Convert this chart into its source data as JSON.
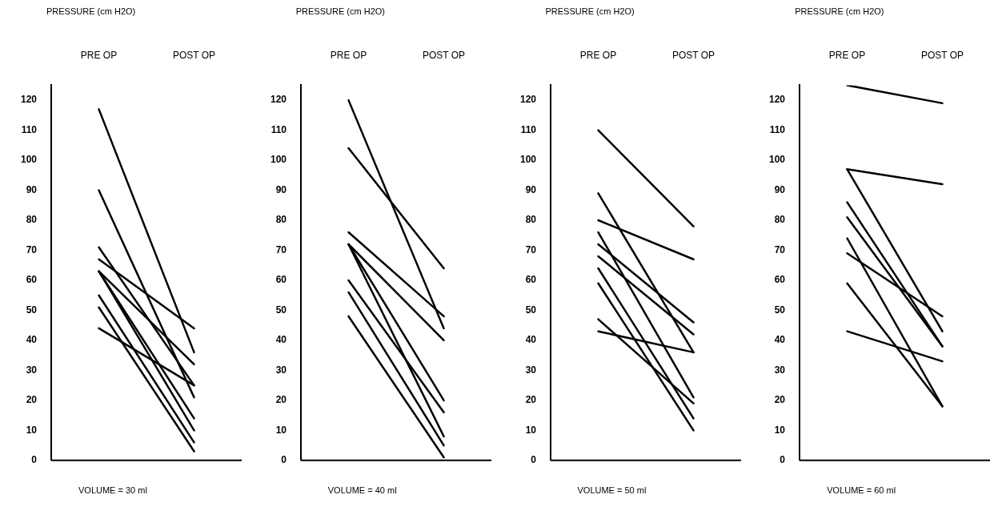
{
  "chart_data": [
    {
      "type": "line",
      "ylabel": "PRESSURE (cm H2O)",
      "xlabel": "VOLUME = 30 ml",
      "categories": [
        "PRE OP",
        "POST OP"
      ],
      "ylim": [
        0,
        125
      ],
      "yticks": [
        0,
        10,
        20,
        30,
        40,
        50,
        60,
        70,
        80,
        90,
        100,
        110,
        120
      ],
      "grid": false,
      "legend": false,
      "marker": "none",
      "line_style": "solid",
      "series": [
        {
          "color": "#000000",
          "values": [
            117,
            36
          ]
        },
        {
          "color": "#000000",
          "values": [
            90,
            21
          ]
        },
        {
          "color": "#000000",
          "values": [
            71,
            25
          ]
        },
        {
          "color": "#000000",
          "values": [
            67,
            44
          ]
        },
        {
          "color": "#000000",
          "values": [
            63,
            32
          ]
        },
        {
          "color": "#000000",
          "values": [
            63,
            14
          ]
        },
        {
          "color": "#000000",
          "values": [
            63,
            10
          ]
        },
        {
          "color": "#000000",
          "values": [
            55,
            6
          ]
        },
        {
          "color": "#000000",
          "values": [
            51,
            3
          ]
        },
        {
          "color": "#000000",
          "values": [
            44,
            25
          ]
        }
      ]
    },
    {
      "type": "line",
      "ylabel": "PRESSURE (cm H2O)",
      "xlabel": "VOLUME = 40 ml",
      "categories": [
        "PRE OP",
        "POST OP"
      ],
      "ylim": [
        0,
        125
      ],
      "yticks": [
        0,
        10,
        20,
        30,
        40,
        50,
        60,
        70,
        80,
        90,
        100,
        110,
        120
      ],
      "grid": false,
      "legend": false,
      "marker": "none",
      "line_style": "solid",
      "series": [
        {
          "color": "#000000",
          "values": [
            120,
            44
          ]
        },
        {
          "color": "#000000",
          "values": [
            104,
            64
          ]
        },
        {
          "color": "#000000",
          "values": [
            76,
            48
          ]
        },
        {
          "color": "#000000",
          "values": [
            72,
            40
          ]
        },
        {
          "color": "#000000",
          "values": [
            72,
            20
          ]
        },
        {
          "color": "#000000",
          "values": [
            72,
            8
          ]
        },
        {
          "color": "#000000",
          "values": [
            60,
            16
          ]
        },
        {
          "color": "#000000",
          "values": [
            56,
            5
          ]
        },
        {
          "color": "#000000",
          "values": [
            48,
            1
          ]
        }
      ]
    },
    {
      "type": "line",
      "ylabel": "PRESSURE (cm H2O)",
      "xlabel": "VOLUME = 50 ml",
      "categories": [
        "PRE OP",
        "POST OP"
      ],
      "ylim": [
        0,
        125
      ],
      "yticks": [
        0,
        10,
        20,
        30,
        40,
        50,
        60,
        70,
        80,
        90,
        100,
        110,
        120
      ],
      "grid": false,
      "legend": false,
      "marker": "none",
      "line_style": "solid",
      "series": [
        {
          "color": "#000000",
          "values": [
            110,
            78
          ]
        },
        {
          "color": "#000000",
          "values": [
            89,
            36
          ]
        },
        {
          "color": "#000000",
          "values": [
            80,
            67
          ]
        },
        {
          "color": "#000000",
          "values": [
            76,
            21
          ]
        },
        {
          "color": "#000000",
          "values": [
            72,
            46
          ]
        },
        {
          "color": "#000000",
          "values": [
            68,
            42
          ]
        },
        {
          "color": "#000000",
          "values": [
            64,
            14
          ]
        },
        {
          "color": "#000000",
          "values": [
            59,
            10
          ]
        },
        {
          "color": "#000000",
          "values": [
            47,
            19
          ]
        },
        {
          "color": "#000000",
          "values": [
            43,
            36
          ]
        }
      ]
    },
    {
      "type": "line",
      "ylabel": "PRESSURE (cm H2O)",
      "xlabel": "VOLUME = 60 ml",
      "categories": [
        "PRE OP",
        "POST OP"
      ],
      "ylim": [
        0,
        125
      ],
      "yticks": [
        0,
        10,
        20,
        30,
        40,
        50,
        60,
        70,
        80,
        90,
        100,
        110,
        120
      ],
      "grid": false,
      "legend": false,
      "marker": "none",
      "line_style": "solid",
      "series": [
        {
          "color": "#000000",
          "values": [
            125,
            119
          ]
        },
        {
          "color": "#000000",
          "values": [
            97,
            92
          ]
        },
        {
          "color": "#000000",
          "values": [
            97,
            43
          ]
        },
        {
          "color": "#000000",
          "values": [
            86,
            38
          ]
        },
        {
          "color": "#000000",
          "values": [
            81,
            38
          ]
        },
        {
          "color": "#000000",
          "values": [
            74,
            18
          ]
        },
        {
          "color": "#000000",
          "values": [
            69,
            48
          ]
        },
        {
          "color": "#000000",
          "values": [
            59,
            18
          ]
        },
        {
          "color": "#000000",
          "values": [
            43,
            33
          ]
        }
      ]
    }
  ]
}
